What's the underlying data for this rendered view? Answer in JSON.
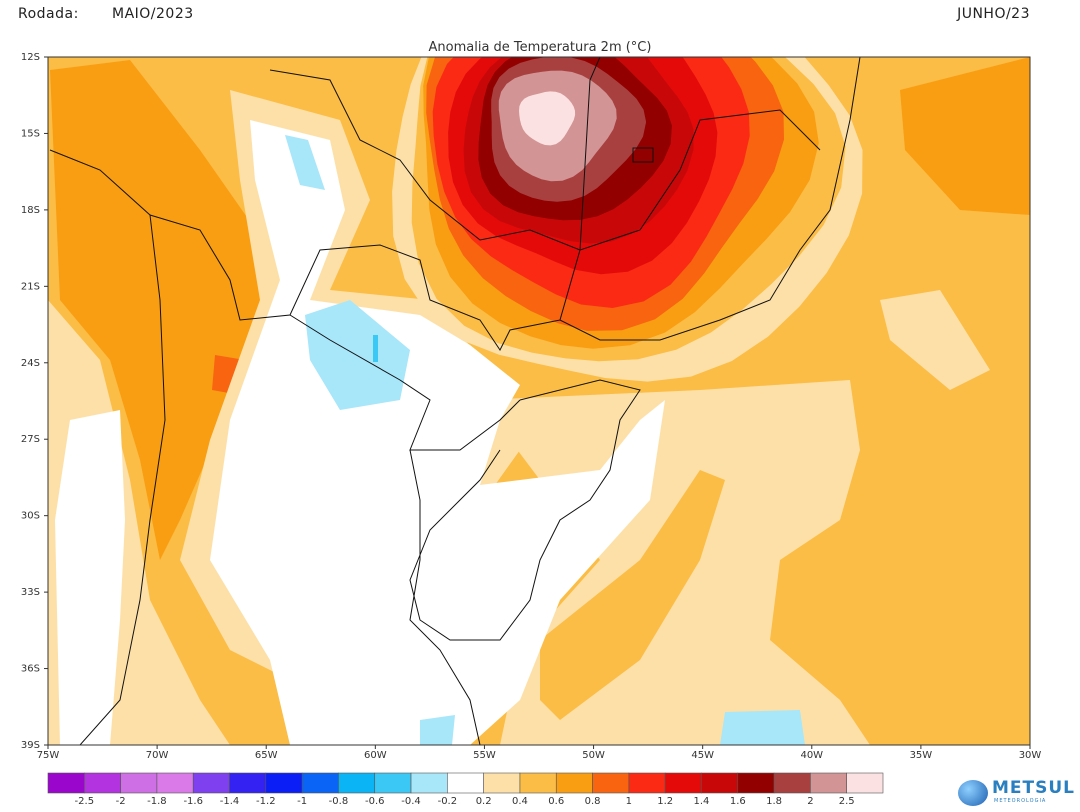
{
  "header": {
    "run_label": "Rodada:",
    "run_value": "MAIO/2023",
    "valid": "JUNHO/23"
  },
  "title": "Anomalia de Temperatura 2m (°C)",
  "map": {
    "lat_labels": [
      "12S",
      "15S",
      "18S",
      "21S",
      "24S",
      "27S",
      "30S",
      "33S",
      "36S",
      "39S"
    ],
    "lon_labels": [
      "75W",
      "70W",
      "65W",
      "60W",
      "55W",
      "50W",
      "45W",
      "40W",
      "35W",
      "30W"
    ],
    "hotspot_peak_level": 2.5
  },
  "colorbar": {
    "labels": [
      "-2.5",
      "-2",
      "-1.8",
      "-1.6",
      "-1.4",
      "-1.2",
      "-1",
      "-0.8",
      "-0.6",
      "-0.4",
      "-0.2",
      "0.2",
      "0.4",
      "0.6",
      "0.8",
      "1",
      "1.2",
      "1.4",
      "1.6",
      "1.8",
      "2",
      "2.5"
    ],
    "colors": [
      "#9a06cc",
      "#b433e0",
      "#cf6fe6",
      "#d97ae8",
      "#7f40f0",
      "#3322f2",
      "#0a1ef5",
      "#0a64f5",
      "#0ab4f5",
      "#3cc8f5",
      "#a8e6fa",
      "#ffffff",
      "#fde0a8",
      "#fbbd45",
      "#f99e12",
      "#f86410",
      "#fa2a14",
      "#e50a0a",
      "#c80808",
      "#920000",
      "#a84040",
      "#d29494",
      "#fbe1e1"
    ]
  },
  "logo": {
    "name": "METSUL",
    "sub": "METEOROLOGIA"
  }
}
